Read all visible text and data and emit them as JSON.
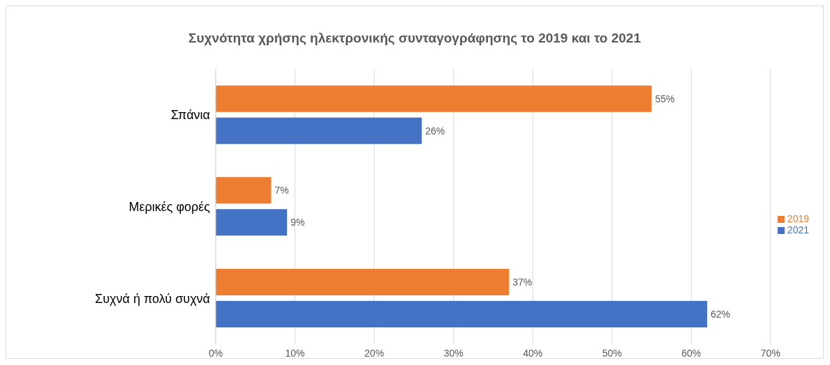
{
  "chart_data": {
    "type": "bar",
    "orientation": "horizontal",
    "title": "Συχνότητα χρήσης ηλεκτρονικής συνταγογράφησης το 2019 και το 2021",
    "categories": [
      "Σπάνια",
      "Μερικές φορές",
      "Συχνά ή πολύ συχνά"
    ],
    "series": [
      {
        "name": "2019",
        "color": "#ed7d31",
        "values": [
          55,
          7,
          37
        ],
        "value_labels": [
          "55%",
          "7%",
          "37%"
        ]
      },
      {
        "name": "2021",
        "color": "#4472c4",
        "values": [
          26,
          9,
          62
        ],
        "value_labels": [
          "26%",
          "9%",
          "62%"
        ]
      }
    ],
    "xlim": [
      0,
      70
    ],
    "xticks": [
      {
        "value": 0,
        "label": "0%"
      },
      {
        "value": 10,
        "label": "10%"
      },
      {
        "value": 20,
        "label": "20%"
      },
      {
        "value": 30,
        "label": "30%"
      },
      {
        "value": 40,
        "label": "40%"
      },
      {
        "value": 50,
        "label": "50%"
      },
      {
        "value": 60,
        "label": "60%"
      },
      {
        "value": 70,
        "label": "70%"
      }
    ],
    "grid": "x",
    "legend": "right"
  }
}
